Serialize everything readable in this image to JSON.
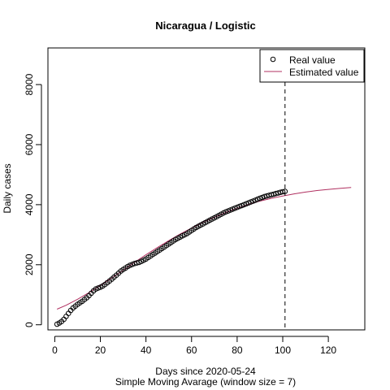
{
  "chart_data": {
    "type": "scatter",
    "title": "Nicaragua / Logistic",
    "xlabel": "Days since 2020-05-24",
    "subtitle": "Simple Moving Avarage (window size = 7)",
    "ylabel": "Daily cases",
    "xlim": [
      -3,
      136
    ],
    "ylim": [
      -170,
      9220
    ],
    "xticks": [
      0,
      20,
      40,
      60,
      80,
      100,
      120
    ],
    "yticks": [
      0,
      2000,
      4000,
      6000,
      8000
    ],
    "vline_x": 101,
    "legend": {
      "position": "top-right",
      "entries": [
        "Real value",
        "Estimated value"
      ]
    },
    "colors": {
      "points": "#000000",
      "fit": "#b03060",
      "vline": "#000000"
    },
    "series": [
      {
        "name": "Real value",
        "x": [
          1,
          2,
          3,
          4,
          5,
          6,
          7,
          8,
          9,
          10,
          11,
          12,
          13,
          14,
          15,
          16,
          17,
          18,
          19,
          20,
          21,
          22,
          23,
          24,
          25,
          26,
          27,
          28,
          29,
          30,
          31,
          32,
          33,
          34,
          35,
          36,
          37,
          38,
          39,
          40,
          41,
          42,
          43,
          44,
          45,
          46,
          47,
          48,
          49,
          50,
          51,
          52,
          53,
          54,
          55,
          56,
          57,
          58,
          59,
          60,
          61,
          62,
          63,
          64,
          65,
          66,
          67,
          68,
          69,
          70,
          71,
          72,
          73,
          74,
          75,
          76,
          77,
          78,
          79,
          80,
          81,
          82,
          83,
          84,
          85,
          86,
          87,
          88,
          89,
          90,
          91,
          92,
          93,
          94,
          95,
          96,
          97,
          98,
          99,
          100,
          101
        ],
        "y": [
          20,
          60,
          110,
          180,
          280,
          380,
          480,
          560,
          620,
          680,
          730,
          780,
          840,
          900,
          970,
          1050,
          1130,
          1190,
          1220,
          1250,
          1290,
          1340,
          1400,
          1460,
          1520,
          1590,
          1650,
          1720,
          1790,
          1840,
          1890,
          1940,
          1980,
          2010,
          2040,
          2060,
          2080,
          2110,
          2150,
          2190,
          2240,
          2290,
          2340,
          2390,
          2440,
          2490,
          2540,
          2590,
          2640,
          2690,
          2740,
          2790,
          2840,
          2880,
          2920,
          2960,
          3000,
          3040,
          3090,
          3140,
          3190,
          3240,
          3280,
          3320,
          3360,
          3400,
          3440,
          3480,
          3520,
          3560,
          3600,
          3640,
          3680,
          3720,
          3760,
          3790,
          3820,
          3850,
          3880,
          3910,
          3940,
          3970,
          4000,
          4030,
          4060,
          4090,
          4120,
          4150,
          4180,
          4210,
          4240,
          4270,
          4290,
          4310,
          4330,
          4350,
          4370,
          4390,
          4410,
          4430,
          4440
        ]
      },
      {
        "name": "Estimated value",
        "x": [
          1,
          5,
          10,
          15,
          20,
          25,
          30,
          35,
          40,
          45,
          50,
          55,
          60,
          65,
          70,
          75,
          80,
          85,
          90,
          95,
          100,
          105,
          110,
          115,
          120,
          125,
          130
        ],
        "y": [
          520,
          650,
          850,
          1070,
          1310,
          1560,
          1820,
          2080,
          2330,
          2570,
          2800,
          3020,
          3220,
          3410,
          3580,
          3740,
          3880,
          4010,
          4120,
          4210,
          4290,
          4360,
          4420,
          4470,
          4510,
          4540,
          4570
        ]
      }
    ]
  }
}
